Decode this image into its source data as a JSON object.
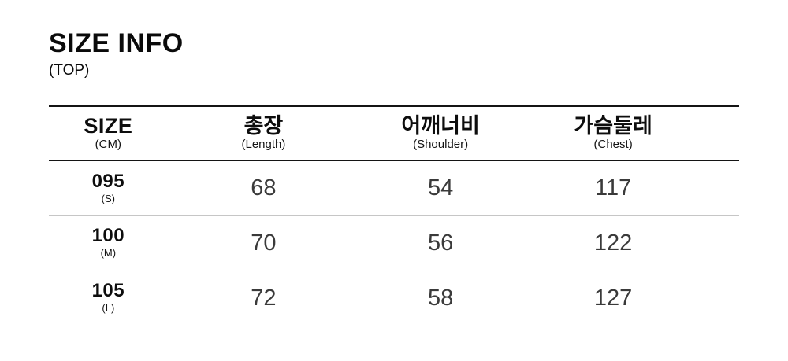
{
  "page": {
    "title": "SIZE INFO",
    "subtitle": "(TOP)"
  },
  "table": {
    "columns": [
      {
        "label": "SIZE",
        "sublabel": "(CM)"
      },
      {
        "label": "총장",
        "sublabel": "(Length)"
      },
      {
        "label": "어깨너비",
        "sublabel": "(Shoulder)"
      },
      {
        "label": "가슴둘레",
        "sublabel": "(Chest)"
      }
    ],
    "rows": [
      {
        "size": "095",
        "size_label": "(S)",
        "values": [
          "68",
          "54",
          "117"
        ]
      },
      {
        "size": "100",
        "size_label": "(M)",
        "values": [
          "70",
          "56",
          "122"
        ]
      },
      {
        "size": "105",
        "size_label": "(L)",
        "values": [
          "72",
          "58",
          "127"
        ]
      }
    ]
  },
  "colors": {
    "text": "#111111",
    "value_text": "#3a3a3a",
    "strong_line": "#141414",
    "light_line": "#c6c6c6",
    "background": "#ffffff"
  }
}
